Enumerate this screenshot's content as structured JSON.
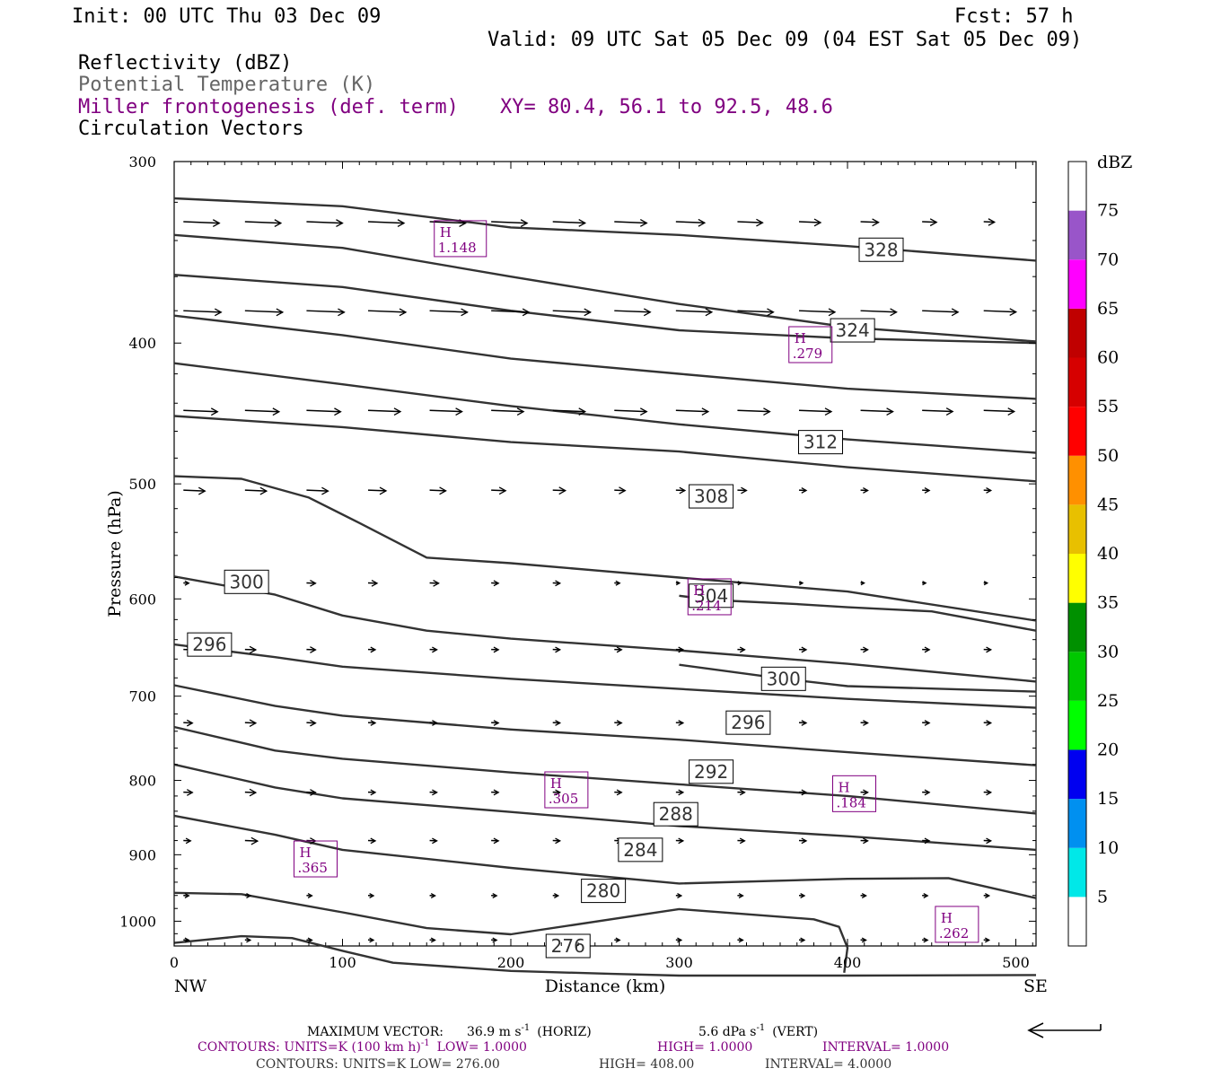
{
  "header": {
    "init": "Init: 00 UTC Thu 03 Dec 09",
    "fcst": "Fcst:   57 h",
    "valid": "Valid: 09 UTC Sat 05 Dec 09 (04 EST Sat 05 Dec 09)"
  },
  "legend": {
    "reflectivity": "Reflectivity (dBZ)",
    "theta": "Potential Temperature (K)",
    "miller": "Miller frontogenesis (def. term)",
    "xy": "XY=  80.4, 56.1 to  92.5, 48.6",
    "vectors": "Circulation Vectors"
  },
  "colors": {
    "contour": "#333333",
    "frontogenesis": "#800080",
    "vector": "#000000"
  },
  "footer": {
    "max_vector_label": "MAXIMUM VECTOR:",
    "max_vector_horiz": "36.9 m s",
    "horiz_tag": "(HORIZ)",
    "max_vector_vert": "5.6 dPa s",
    "vert_tag": "(VERT)",
    "exp": "-1",
    "contours1": {
      "prefix": "CONTOURS:  UNITS=K (100 km h)",
      "exp": "-1",
      "low": "LOW=   1.0000",
      "high": "HIGH=   1.0000",
      "interval": "INTERVAL=    1.0000"
    },
    "contours2": {
      "text": "CONTOURS:  UNITS=K  LOW=   276.00",
      "high": "HIGH=   408.00",
      "interval": "INTERVAL=     4.0000"
    }
  },
  "chart_data": {
    "type": "line",
    "description_kind": "vertical cross-section",
    "xlabel": "Distance (km)",
    "ylabel": "Pressure (hPa)",
    "xlim": [
      0,
      512
    ],
    "ylim": [
      1040,
      300
    ],
    "y_log_scale": true,
    "x_ticks": [
      0,
      100,
      200,
      300,
      400,
      500
    ],
    "y_ticks": [
      300,
      400,
      500,
      600,
      700,
      800,
      900,
      1000
    ],
    "x_end_labels": {
      "left": "NW",
      "right": "SE"
    },
    "colorbar": {
      "title": "dBZ",
      "levels": [
        5,
        10,
        15,
        20,
        25,
        30,
        35,
        40,
        45,
        50,
        55,
        60,
        65,
        70,
        75
      ],
      "colors": [
        "#ffffff",
        "#00e8e8",
        "#0090f0",
        "#0000f0",
        "#00ff00",
        "#00c800",
        "#009000",
        "#ffff00",
        "#e8c000",
        "#ff9000",
        "#ff0000",
        "#d60000",
        "#c00000",
        "#ff00ff",
        "#9955c9",
        "#ffffff"
      ]
    },
    "isentropes": [
      {
        "label": "328",
        "label_at": [
          420,
          345
        ],
        "points": [
          [
            0,
            318
          ],
          [
            100,
            322
          ],
          [
            200,
            333
          ],
          [
            300,
            337
          ],
          [
            400,
            343
          ],
          [
            512,
            351
          ]
        ]
      },
      {
        "label": "",
        "points": [
          [
            0,
            337
          ],
          [
            100,
            344
          ],
          [
            200,
            360
          ],
          [
            300,
            376
          ],
          [
            400,
            390
          ],
          [
            512,
            399
          ]
        ]
      },
      {
        "label": "324",
        "label_at": [
          403,
          392
        ],
        "points": [
          [
            0,
            359
          ],
          [
            100,
            366
          ],
          [
            200,
            380
          ],
          [
            300,
            392
          ],
          [
            400,
            397
          ],
          [
            512,
            400
          ]
        ]
      },
      {
        "label": "",
        "points": [
          [
            0,
            383
          ],
          [
            100,
            395
          ],
          [
            200,
            410
          ],
          [
            300,
            420
          ],
          [
            400,
            430
          ],
          [
            512,
            437
          ]
        ]
      },
      {
        "label": "",
        "points": [
          [
            0,
            413
          ],
          [
            100,
            427
          ],
          [
            200,
            442
          ],
          [
            300,
            455
          ],
          [
            400,
            466
          ],
          [
            512,
            476
          ]
        ]
      },
      {
        "label": "312",
        "label_at": [
          384,
          468
        ],
        "points": [
          [
            0,
            449
          ],
          [
            100,
            457
          ],
          [
            200,
            468
          ],
          [
            300,
            475
          ],
          [
            400,
            487
          ],
          [
            512,
            498
          ]
        ]
      },
      {
        "label": "308",
        "label_at": [
          319,
          510
        ],
        "points": [
          [
            0,
            494
          ],
          [
            40,
            496
          ],
          [
            80,
            511
          ],
          [
            110,
            532
          ],
          [
            150,
            562
          ],
          [
            200,
            567
          ],
          [
            300,
            580
          ],
          [
            400,
            593
          ],
          [
            512,
            621
          ]
        ]
      },
      {
        "label": "300",
        "label_at": [
          43,
          584
        ],
        "points": [
          [
            0,
            579
          ],
          [
            60,
            596
          ],
          [
            100,
            616
          ],
          [
            150,
            631
          ],
          [
            200,
            639
          ],
          [
            300,
            651
          ],
          [
            400,
            665
          ],
          [
            512,
            684
          ]
        ]
      },
      {
        "label": "304",
        "label_at": [
          319,
          597
        ],
        "points": [
          [
            300,
            597
          ],
          [
            320,
            601
          ],
          [
            370,
            605
          ],
          [
            400,
            608
          ],
          [
            450,
            612
          ],
          [
            512,
            631
          ]
        ]
      },
      {
        "label": "296",
        "label_at": [
          21,
          645
        ],
        "points": [
          [
            0,
            645
          ],
          [
            60,
            658
          ],
          [
            100,
            668
          ],
          [
            200,
            681
          ],
          [
            300,
            692
          ],
          [
            400,
            703
          ],
          [
            512,
            713
          ]
        ]
      },
      {
        "label": "300",
        "label_at": [
          362,
          681
        ],
        "points": [
          [
            300,
            666
          ],
          [
            362,
            681
          ],
          [
            400,
            689
          ],
          [
            512,
            695
          ]
        ]
      },
      {
        "label": "296",
        "label_at": [
          341,
          730
        ],
        "points": [
          [
            0,
            688
          ],
          [
            60,
            711
          ],
          [
            100,
            722
          ],
          [
            200,
            738
          ],
          [
            300,
            750
          ],
          [
            400,
            765
          ],
          [
            512,
            781
          ]
        ]
      },
      {
        "label": "292",
        "label_at": [
          319,
          789
        ],
        "points": [
          [
            0,
            735
          ],
          [
            60,
            763
          ],
          [
            100,
            773
          ],
          [
            200,
            790
          ],
          [
            300,
            805
          ],
          [
            400,
            820
          ],
          [
            512,
            843
          ]
        ]
      },
      {
        "label": "288",
        "label_at": [
          298,
          844
        ],
        "points": [
          [
            0,
            780
          ],
          [
            60,
            809
          ],
          [
            100,
            823
          ],
          [
            200,
            841
          ],
          [
            300,
            860
          ],
          [
            400,
            874
          ],
          [
            512,
            893
          ]
        ]
      },
      {
        "label": "284",
        "label_at": [
          277,
          893
        ],
        "points": [
          [
            0,
            846
          ],
          [
            60,
            872
          ],
          [
            100,
            893
          ],
          [
            200,
            919
          ],
          [
            300,
            942
          ],
          [
            400,
            935
          ],
          [
            460,
            934
          ],
          [
            512,
            964
          ]
        ]
      },
      {
        "label": "280",
        "label_at": [
          255,
          953
        ],
        "points": [
          [
            0,
            956
          ],
          [
            40,
            958
          ],
          [
            100,
            986
          ],
          [
            150,
            1011
          ],
          [
            200,
            1021
          ],
          [
            300,
            981
          ],
          [
            380,
            997
          ],
          [
            395,
            1009
          ],
          [
            400,
            1043
          ],
          [
            398,
            1085
          ]
        ]
      },
      {
        "label": "276",
        "label_at": [
          234,
          1040
        ],
        "points": [
          [
            0,
            1035
          ],
          [
            40,
            1024
          ],
          [
            70,
            1027
          ],
          [
            100,
            1048
          ],
          [
            130,
            1068
          ],
          [
            200,
            1082
          ],
          [
            260,
            1087
          ],
          [
            300,
            1090
          ],
          [
            400,
            1090
          ],
          [
            512,
            1089
          ]
        ]
      }
    ],
    "frontogenesis_maxima": [
      {
        "label": "H",
        "value": "1.148",
        "x": 170,
        "p": 339
      },
      {
        "label": "H",
        "value": ".279",
        "x": 378,
        "p": 401
      },
      {
        "label": "H",
        "value": ".214",
        "x": 318,
        "p": 598
      },
      {
        "label": "H",
        "value": ".305",
        "x": 233,
        "p": 812
      },
      {
        "label": "H",
        "value": ".184",
        "x": 404,
        "p": 817
      },
      {
        "label": "H",
        "value": ".365",
        "x": 84,
        "p": 906
      },
      {
        "label": "H",
        "value": ".262",
        "x": 465,
        "p": 1005
      }
    ],
    "vector_rows": [
      {
        "p": 330,
        "lengths": [
          40,
          40,
          40,
          40,
          40,
          40,
          36,
          36,
          32,
          28,
          24,
          20,
          16,
          12
        ]
      },
      {
        "p": 380,
        "lengths": [
          42,
          42,
          42,
          42,
          42,
          42,
          42,
          40,
          40,
          40,
          40,
          40,
          40,
          36
        ]
      },
      {
        "p": 445,
        "lengths": [
          38,
          38,
          38,
          36,
          36,
          36,
          36,
          36,
          36,
          36,
          36,
          36,
          34,
          34
        ]
      },
      {
        "p": 505,
        "lengths": [
          24,
          24,
          24,
          20,
          18,
          16,
          14,
          12,
          10,
          10,
          8,
          8,
          8,
          8
        ]
      },
      {
        "p": 585,
        "lengths": [
          6,
          10,
          10,
          10,
          10,
          8,
          8,
          6,
          4,
          4,
          4,
          4,
          4,
          4
        ]
      },
      {
        "p": 650,
        "lengths": [
          10,
          12,
          10,
          8,
          8,
          8,
          8,
          8,
          8,
          8,
          8,
          8,
          8,
          8
        ]
      },
      {
        "p": 730,
        "lengths": [
          10,
          12,
          10,
          8,
          8,
          8,
          8,
          8,
          8,
          8,
          8,
          8,
          8,
          8
        ]
      },
      {
        "p": 815,
        "lengths": [
          10,
          12,
          10,
          8,
          8,
          8,
          8,
          8,
          8,
          8,
          8,
          8,
          8,
          8
        ]
      },
      {
        "p": 880,
        "lengths": [
          8,
          14,
          10,
          8,
          8,
          8,
          8,
          8,
          8,
          8,
          8,
          8,
          8,
          8
        ]
      },
      {
        "p": 960,
        "lengths": [
          6,
          6,
          6,
          6,
          6,
          6,
          6,
          6,
          6,
          6,
          6,
          6,
          6,
          6
        ]
      },
      {
        "p": 1030,
        "lengths": [
          6,
          6,
          6,
          6,
          6,
          6,
          6,
          6,
          6,
          6,
          6,
          6,
          6,
          6
        ]
      }
    ]
  }
}
